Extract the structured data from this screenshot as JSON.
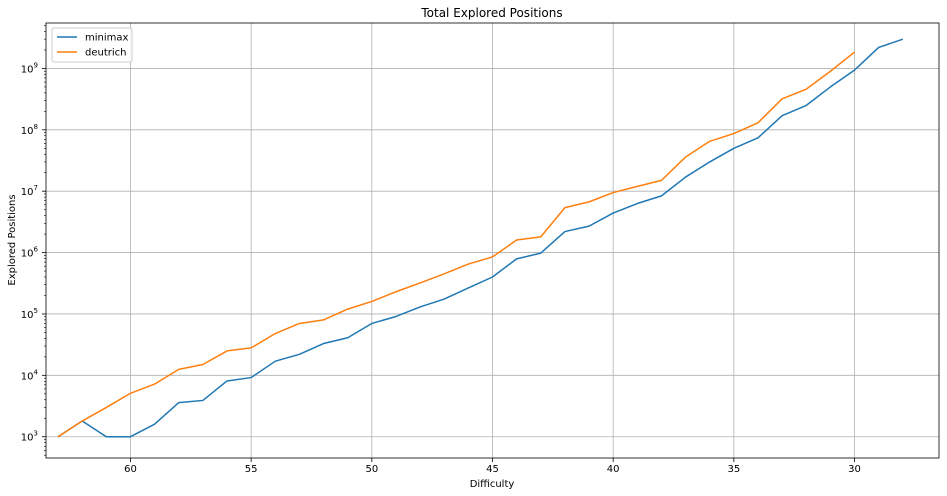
{
  "chart_data": {
    "type": "line",
    "title": "Total Explored Positions",
    "xlabel": "Difficulty",
    "ylabel": "Explored Positions",
    "x_inverted": true,
    "xlim": [
      63.5,
      26.5
    ],
    "xticks": [
      60,
      55,
      50,
      45,
      40,
      35,
      30
    ],
    "yscale": "log",
    "ylim": [
      450,
      5500000000
    ],
    "yticks": [
      {
        "value": 1000,
        "base": "10",
        "exp": "3"
      },
      {
        "value": 10000,
        "base": "10",
        "exp": "4"
      },
      {
        "value": 100000,
        "base": "10",
        "exp": "5"
      },
      {
        "value": 1000000,
        "base": "10",
        "exp": "6"
      },
      {
        "value": 10000000,
        "base": "10",
        "exp": "7"
      },
      {
        "value": 100000000,
        "base": "10",
        "exp": "8"
      },
      {
        "value": 1000000000,
        "base": "10",
        "exp": "9"
      }
    ],
    "grid": true,
    "legend_position": "upper-left",
    "series": [
      {
        "name": "minimax",
        "color": "#1f77b4",
        "x": [
          63,
          62,
          61,
          60,
          59,
          58,
          57,
          56,
          55,
          54,
          53,
          52,
          51,
          50,
          49,
          48,
          47,
          46,
          45,
          44,
          43,
          42,
          41,
          40,
          39,
          38,
          37,
          36,
          35,
          34,
          33,
          32,
          31,
          30,
          29,
          28
        ],
        "values": [
          1000,
          1800,
          1000,
          1000,
          1600,
          3600,
          3900,
          8100,
          9200,
          17000,
          22000,
          33000,
          41000,
          70000,
          91000,
          130000,
          175000,
          265000,
          400000,
          790000,
          980000,
          2200000,
          2700000,
          4400000,
          6300000,
          8400000,
          17000000,
          30000000,
          50000000,
          74000000,
          170000000,
          250000000,
          500000000,
          940000000,
          2200000000,
          3000000000
        ]
      },
      {
        "name": "deutrich",
        "color": "#ff7f0e",
        "x": [
          63,
          62,
          61,
          60,
          59,
          58,
          57,
          56,
          55,
          54,
          53,
          52,
          51,
          50,
          49,
          48,
          47,
          46,
          45,
          44,
          43,
          42,
          41,
          40,
          39,
          38,
          37,
          36,
          35,
          34,
          33,
          32,
          31,
          30
        ],
        "values": [
          1000,
          1800,
          3000,
          5100,
          7200,
          12500,
          15000,
          25000,
          28000,
          48000,
          70000,
          80000,
          120000,
          160000,
          230000,
          320000,
          450000,
          650000,
          850000,
          1600000,
          1800000,
          5400000,
          6700000,
          9500000,
          12000000,
          15000000,
          36000000,
          65000000,
          87000000,
          130000000,
          320000000,
          460000000,
          900000000,
          1850000000
        ]
      }
    ]
  }
}
